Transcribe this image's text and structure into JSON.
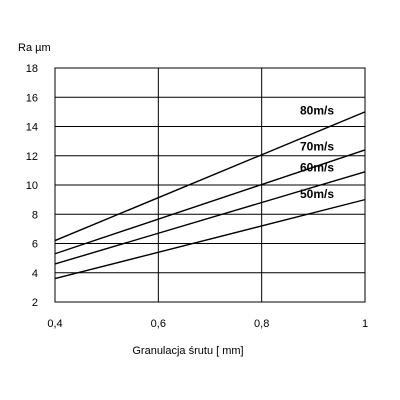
{
  "chart_data": {
    "type": "line",
    "title": "",
    "xlabel": "Granulacja śrutu [ mm]",
    "ylabel": "Ra µm",
    "xlim": [
      0.4,
      1.0
    ],
    "ylim": [
      2,
      18
    ],
    "x_ticks": [
      "0,4",
      "0,6",
      "0,8",
      "1"
    ],
    "x_tick_values": [
      0.4,
      0.6,
      0.8,
      1.0
    ],
    "y_ticks": [
      "2",
      "4",
      "6",
      "8",
      "10",
      "12",
      "14",
      "16",
      "18"
    ],
    "y_tick_values": [
      2,
      4,
      6,
      8,
      10,
      12,
      14,
      16,
      18
    ],
    "grid": true,
    "legend": "inline-labels-right",
    "series": [
      {
        "name": "80m/s",
        "x": [
          0.4,
          1.0
        ],
        "y": [
          6.2,
          15.0
        ]
      },
      {
        "name": "70m/s",
        "x": [
          0.4,
          1.0
        ],
        "y": [
          5.3,
          12.4
        ]
      },
      {
        "name": "60m/s",
        "x": [
          0.4,
          1.0
        ],
        "y": [
          4.6,
          10.9
        ]
      },
      {
        "name": "50m/s",
        "x": [
          0.4,
          1.0
        ],
        "y": [
          3.6,
          9.0
        ]
      }
    ]
  }
}
